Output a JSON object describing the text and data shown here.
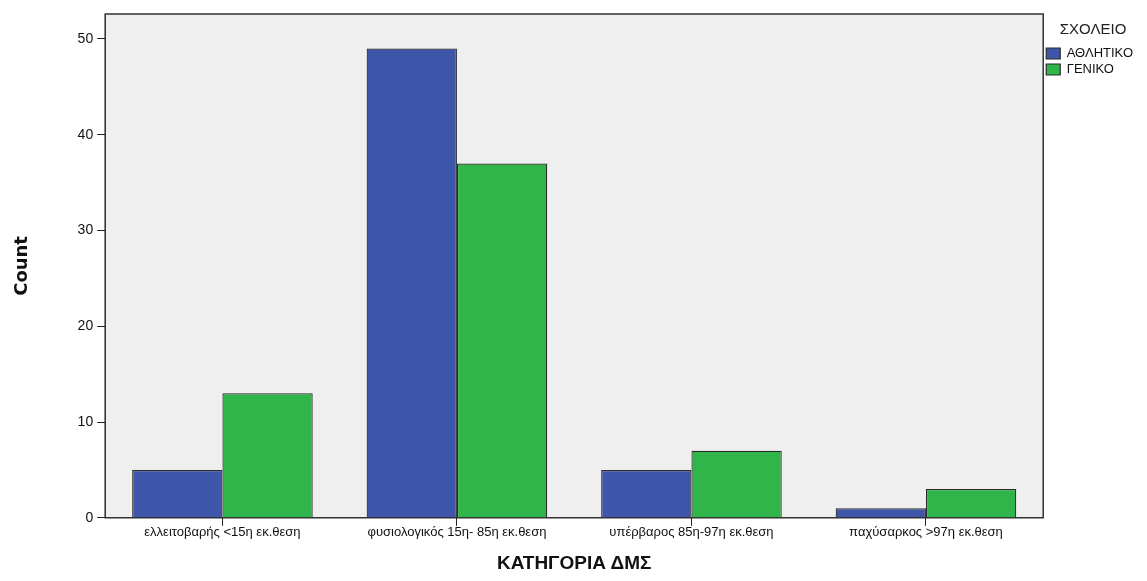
{
  "chart_data": {
    "type": "bar",
    "xlabel": "ΚΑΤΗΓΟΡΙΑ ΔΜΣ",
    "ylabel": "Count",
    "legend_title": "ΣΧΟΛΕΙΟ",
    "categories": [
      "ελλειτοβαρής <15η εκ.θεση",
      "φυσιολογικός 15η- 85η εκ.θεση",
      "υπέρβαρος 85η-97η εκ.θεση",
      "παχύσαρκος >97η εκ.θεση"
    ],
    "series": [
      {
        "name": "ΑΘΛΗΤΙΚΟ",
        "color": "#3d56aa",
        "values": [
          5,
          49,
          5,
          1
        ]
      },
      {
        "name": "ΓΕΝΙΚΟ",
        "color": "#30b54a",
        "values": [
          13,
          37,
          7,
          3
        ]
      }
    ],
    "ylim": [
      0,
      52.6
    ],
    "yticks": [
      0,
      10,
      20,
      30,
      40,
      50
    ],
    "grid": false,
    "legend": "top right"
  }
}
